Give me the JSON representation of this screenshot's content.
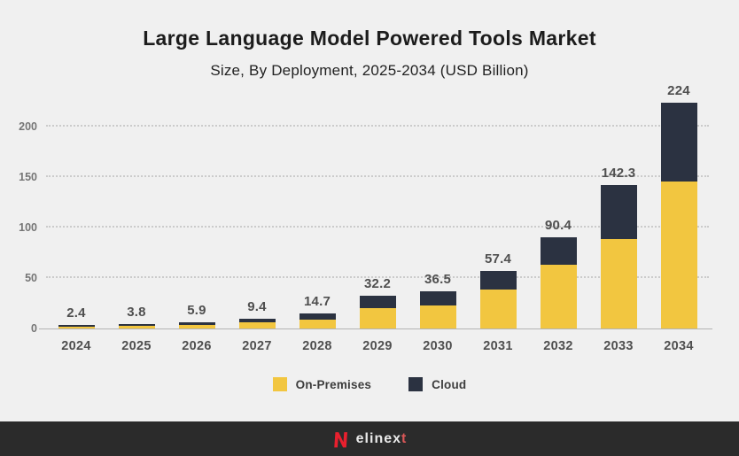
{
  "header": {
    "title": "Large Language Model Powered Tools Market",
    "subtitle": "Size, By Deployment, 2025-2034 (USD Billion)"
  },
  "chart_data": {
    "type": "bar",
    "stacked": true,
    "categories": [
      "2024",
      "2025",
      "2026",
      "2027",
      "2028",
      "2029",
      "2030",
      "2031",
      "2032",
      "2033",
      "2034"
    ],
    "series": [
      {
        "name": "On-Premises",
        "color": "#F2C640",
        "values": [
          1.5,
          2.4,
          3.7,
          6.0,
          9.2,
          20.0,
          22.6,
          39.0,
          63.0,
          89.0,
          146.0
        ]
      },
      {
        "name": "Cloud",
        "color": "#2B3241",
        "values": [
          0.9,
          1.4,
          2.2,
          3.4,
          5.5,
          12.2,
          13.9,
          18.4,
          27.4,
          53.3,
          78.0
        ]
      }
    ],
    "totals": [
      2.4,
      3.8,
      5.9,
      9.4,
      14.7,
      32.2,
      36.5,
      57.4,
      90.4,
      142.3,
      224
    ],
    "total_labels": [
      "2.4",
      "3.8",
      "5.9",
      "9.4",
      "14.7",
      "32.2",
      "36.5",
      "57.4",
      "90.4",
      "142.3",
      "224"
    ],
    "title": "Large Language Model Powered Tools Market",
    "subtitle": "Size, By Deployment, 2025-2034 (USD Billion)",
    "xlabel": "",
    "ylabel": "",
    "ylim": [
      0,
      224
    ],
    "yticks": [
      0,
      50,
      100,
      150,
      200
    ],
    "grid": "horizontal-dotted",
    "legend_position": "bottom"
  },
  "legend": {
    "items": [
      {
        "label": "On-Premises",
        "color": "#F2C640"
      },
      {
        "label": "Cloud",
        "color": "#2B3241"
      }
    ]
  },
  "footer": {
    "brand_main": "elinex",
    "brand_accent": "t",
    "brand_full": "elinext"
  },
  "colors": {
    "background": "#f0f0f0",
    "on_premises": "#F2C640",
    "cloud": "#2B3241",
    "grid": "#cbcbcb",
    "axis": "#b3b3b3",
    "footer_bg": "#2b2b2b",
    "logo_red": "#E8202E"
  }
}
